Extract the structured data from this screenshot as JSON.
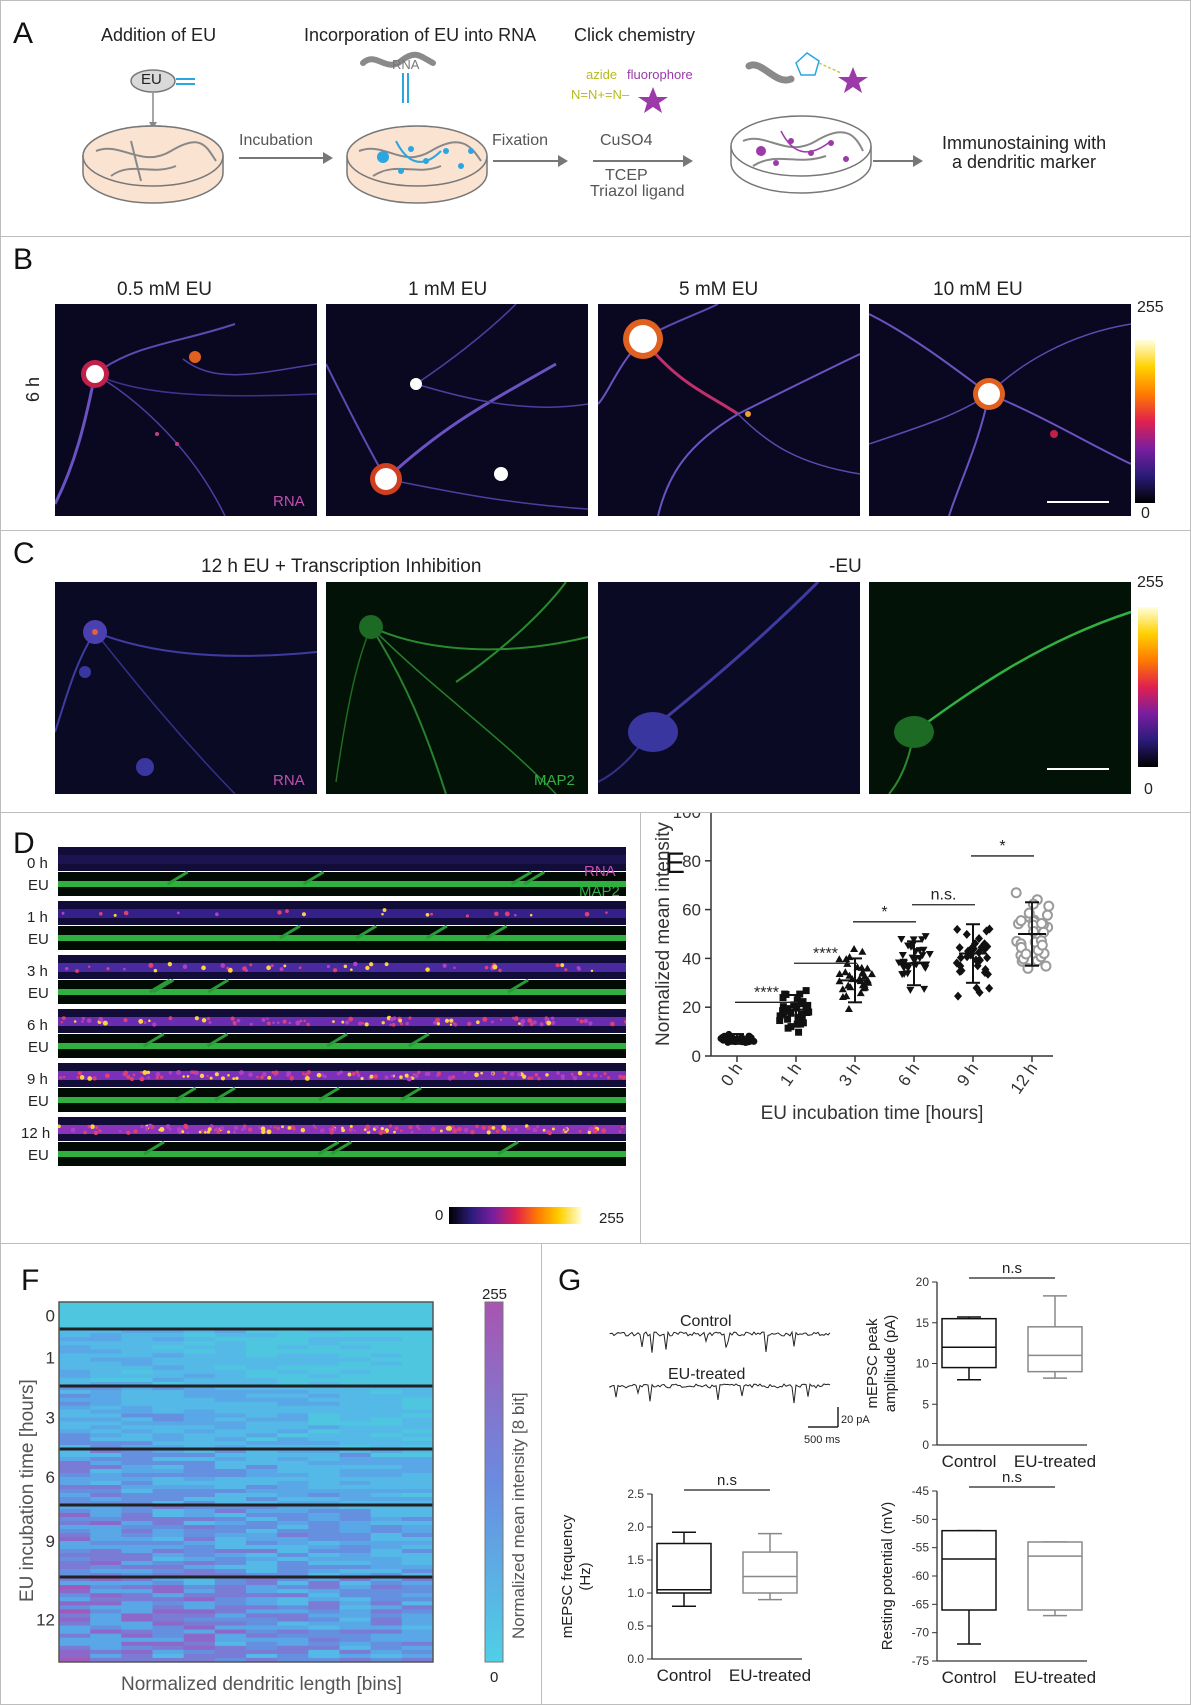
{
  "panels": {
    "a": {
      "label": "A",
      "steps": [
        "Addition of EU",
        "Incorporation of EU into RNA",
        "Click chemistry"
      ],
      "eu_label": "EU",
      "rna_label": "RNA",
      "azide_label": "azide",
      "fluorophore_label": "fluorophore",
      "azide_formula": "N=N+=N–",
      "incubation": "Incubation",
      "fixation": "Fixation",
      "cuso4": "CuSO4",
      "tcep": "TCEP",
      "triazol": "Triazol ligand",
      "immuno_line1": "Immunostaining with",
      "immuno_line2": "a dendritic marker"
    },
    "b": {
      "label": "B",
      "row_label": "6 h",
      "columns": [
        "0.5 mM EU",
        "1 mM EU",
        "5 mM EU",
        "10 mM EU"
      ],
      "rna_tag": "RNA",
      "cb_max": "255",
      "cb_min": "0"
    },
    "c": {
      "label": "C",
      "title_left": "12 h EU + Transcription Inhibition",
      "title_right": "-EU",
      "rna_tag": "RNA",
      "map2_tag": "MAP2",
      "cb_max": "255",
      "cb_min": "0"
    },
    "d": {
      "label": "D",
      "rows": [
        "0 h",
        "1 h",
        "3 h",
        "6 h",
        "9 h",
        "12 h"
      ],
      "eu_tag": "EU",
      "rna_tag": "RNA",
      "map2_tag": "MAP2",
      "cb_min": "0",
      "cb_max": "255"
    },
    "e": {
      "label": "E",
      "sig": [
        "****",
        "****",
        "*",
        "n.s.",
        "*"
      ]
    },
    "f": {
      "label": "F",
      "ylabel": "EU incubation time [hours]",
      "xlabel": "Normalized dendritic length [bins]",
      "cb_label": "Normalized mean intensity [8 bit]",
      "cb_max": "255",
      "cb_min": "0",
      "yticks": [
        "0",
        "1",
        "3",
        "6",
        "9",
        "12"
      ]
    },
    "g": {
      "label": "G",
      "trace_control": "Control",
      "trace_eu": "EU-treated",
      "scale_y": "20 pA",
      "scale_x": "500 ms",
      "sig": "n.s",
      "groups": [
        "Control",
        "EU-treated"
      ],
      "amp_ylabel_1": "mEPSC peak",
      "amp_ylabel_2": "amplitude (pA)",
      "freq_ylabel_1": "mEPSC frequency",
      "freq_ylabel_2": "(Hz)",
      "rest_ylabel": "Resting potential (mV)"
    }
  },
  "chart_data": [
    {
      "type": "scatter",
      "xlabel": "EU incubation time [hours]",
      "ylabel": "Normalized mean intensity",
      "categories": [
        "0 h",
        "1 h",
        "3 h",
        "6 h",
        "9 h",
        "12 h"
      ],
      "ylim": [
        0,
        100
      ],
      "yticks": [
        0,
        20,
        40,
        60,
        80,
        100
      ],
      "mean": [
        7,
        19,
        31,
        38,
        42,
        50
      ],
      "sd": [
        2,
        6,
        9,
        9,
        12,
        13
      ],
      "markers": [
        "circle-filled",
        "square",
        "triangle-up",
        "triangle-down",
        "diamond",
        "circle-open"
      ],
      "colors": [
        "#111111",
        "#111111",
        "#111111",
        "#111111",
        "#111111",
        "#9a9a9a"
      ]
    },
    {
      "type": "box",
      "ylabel": "mEPSC peak amplitude (pA)",
      "categories": [
        "Control",
        "EU-treated"
      ],
      "ylim": [
        0,
        20
      ],
      "yticks": [
        0,
        5,
        10,
        15,
        20
      ],
      "boxes": [
        {
          "min": 8,
          "q1": 9.5,
          "median": 12,
          "q3": 15.5,
          "max": 15.7
        },
        {
          "min": 8.2,
          "q1": 9,
          "median": 11,
          "q3": 14.5,
          "max": 18.3
        }
      ]
    },
    {
      "type": "box",
      "ylabel": "mEPSC frequency (Hz)",
      "categories": [
        "Control",
        "EU-treated"
      ],
      "ylim": [
        0,
        2.5
      ],
      "yticks": [
        0.0,
        0.5,
        1.0,
        1.5,
        2.0,
        2.5
      ],
      "boxes": [
        {
          "min": 0.8,
          "q1": 1.0,
          "median": 1.05,
          "q3": 1.75,
          "max": 1.92
        },
        {
          "min": 0.9,
          "q1": 1.0,
          "median": 1.25,
          "q3": 1.62,
          "max": 1.9
        }
      ]
    },
    {
      "type": "box",
      "ylabel": "Resting potential (mV)",
      "categories": [
        "Control",
        "EU-treated"
      ],
      "ylim": [
        -75,
        -45
      ],
      "yticks": [
        -45,
        -50,
        -55,
        -60,
        -65,
        -70,
        -75
      ],
      "boxes": [
        {
          "min": -72,
          "q1": -66,
          "median": -57,
          "q3": -52,
          "max": -52
        },
        {
          "min": -67,
          "q1": -66,
          "median": -56.5,
          "q3": -54,
          "max": -54
        }
      ]
    }
  ]
}
